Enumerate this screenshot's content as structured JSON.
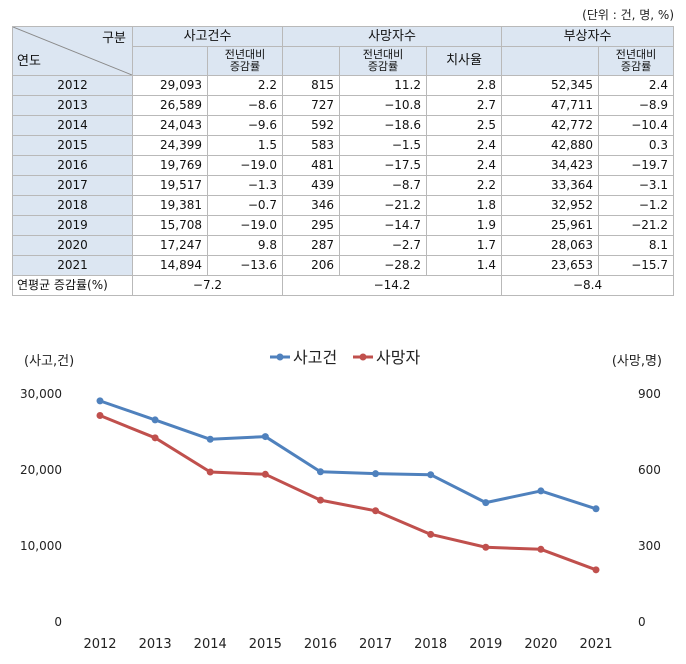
{
  "unit_note": "(단위 : 건, 명, %)",
  "table": {
    "corner_top": "구분",
    "corner_bottom": "연도",
    "group_accidents": "사고건수",
    "group_deaths": "사망자수",
    "group_injured": "부상자수",
    "sub_yoy": "전년대비 증감률",
    "sub_fatality": "치사율",
    "rows": [
      {
        "year": "2012",
        "acc": "29,093",
        "acc_rate": "2.2",
        "death": "815",
        "death_rate": "11.2",
        "fatality": "2.8",
        "inj": "52,345",
        "inj_rate": "2.4"
      },
      {
        "year": "2013",
        "acc": "26,589",
        "acc_rate": "−8.6",
        "death": "727",
        "death_rate": "−10.8",
        "fatality": "2.7",
        "inj": "47,711",
        "inj_rate": "−8.9"
      },
      {
        "year": "2014",
        "acc": "24,043",
        "acc_rate": "−9.6",
        "death": "592",
        "death_rate": "−18.6",
        "fatality": "2.5",
        "inj": "42,772",
        "inj_rate": "−10.4"
      },
      {
        "year": "2015",
        "acc": "24,399",
        "acc_rate": "1.5",
        "death": "583",
        "death_rate": "−1.5",
        "fatality": "2.4",
        "inj": "42,880",
        "inj_rate": "0.3"
      },
      {
        "year": "2016",
        "acc": "19,769",
        "acc_rate": "−19.0",
        "death": "481",
        "death_rate": "−17.5",
        "fatality": "2.4",
        "inj": "34,423",
        "inj_rate": "−19.7"
      },
      {
        "year": "2017",
        "acc": "19,517",
        "acc_rate": "−1.3",
        "death": "439",
        "death_rate": "−8.7",
        "fatality": "2.2",
        "inj": "33,364",
        "inj_rate": "−3.1"
      },
      {
        "year": "2018",
        "acc": "19,381",
        "acc_rate": "−0.7",
        "death": "346",
        "death_rate": "−21.2",
        "fatality": "1.8",
        "inj": "32,952",
        "inj_rate": "−1.2"
      },
      {
        "year": "2019",
        "acc": "15,708",
        "acc_rate": "−19.0",
        "death": "295",
        "death_rate": "−14.7",
        "fatality": "1.9",
        "inj": "25,961",
        "inj_rate": "−21.2"
      },
      {
        "year": "2020",
        "acc": "17,247",
        "acc_rate": "9.8",
        "death": "287",
        "death_rate": "−2.7",
        "fatality": "1.7",
        "inj": "28,063",
        "inj_rate": "8.1"
      },
      {
        "year": "2021",
        "acc": "14,894",
        "acc_rate": "−13.6",
        "death": "206",
        "death_rate": "−28.2",
        "fatality": "1.4",
        "inj": "23,653",
        "inj_rate": "−15.7"
      }
    ],
    "avg_label": "연평균 증감률(%)",
    "avg_acc": "−7.2",
    "avg_death": "−14.2",
    "avg_inj": "−8.4"
  },
  "chart_data": {
    "type": "line",
    "categories": [
      "2012",
      "2013",
      "2014",
      "2015",
      "2016",
      "2017",
      "2018",
      "2019",
      "2020",
      "2021"
    ],
    "series": [
      {
        "name": "사고건",
        "axis": "left",
        "color": "#4f81bd",
        "values": [
          29093,
          26589,
          24043,
          24399,
          19769,
          19517,
          19381,
          15708,
          17247,
          14894
        ]
      },
      {
        "name": "사망자",
        "axis": "right",
        "color": "#c0504d",
        "values": [
          815,
          727,
          592,
          583,
          481,
          439,
          346,
          295,
          287,
          206
        ]
      }
    ],
    "ylabel_left": "(사고,건)",
    "ylabel_right": "(사망,명)",
    "ylim_left": [
      0,
      30000
    ],
    "ylim_right": [
      0,
      900
    ],
    "yticks_left": [
      "0",
      "10,000",
      "20,000",
      "30,000"
    ],
    "yticks_right": [
      "0",
      "300",
      "600",
      "900"
    ],
    "grid": false,
    "legend_position": "top-center"
  }
}
